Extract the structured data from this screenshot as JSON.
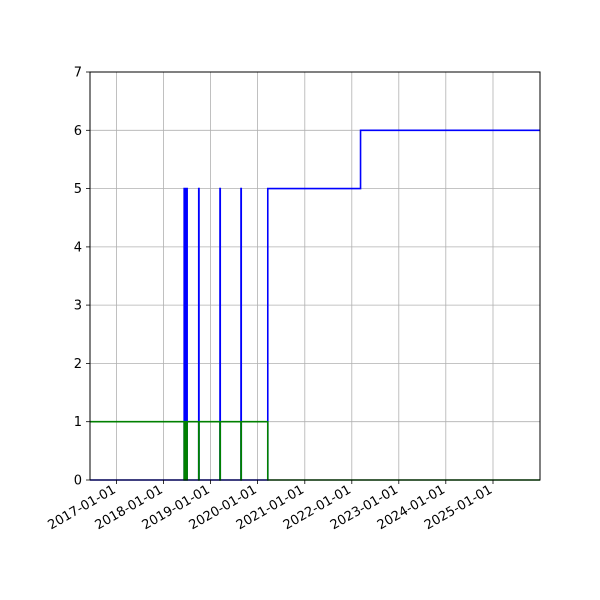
{
  "chart_data": {
    "type": "line",
    "title": "",
    "xlabel": "",
    "ylabel": "",
    "x_type": "date",
    "xlim": [
      "2016-06-09",
      "2026-01-01"
    ],
    "ylim": [
      0,
      7
    ],
    "grid": true,
    "x_ticks": [
      "2017-01-01",
      "2018-01-01",
      "2019-01-01",
      "2020-01-01",
      "2021-01-01",
      "2022-01-01",
      "2023-01-01",
      "2024-01-01",
      "2025-01-01"
    ],
    "y_ticks": [
      0,
      1,
      2,
      3,
      4,
      5,
      6,
      7
    ],
    "series": [
      {
        "color": "#0000ff",
        "drawstyle": "steps-post",
        "points": [
          [
            "2016-06-09",
            0
          ],
          [
            "2018-06-10",
            5
          ],
          [
            "2018-06-16",
            0
          ],
          [
            "2018-06-19",
            5
          ],
          [
            "2018-06-24",
            0
          ],
          [
            "2018-06-27",
            5
          ],
          [
            "2018-07-03",
            0
          ],
          [
            "2018-10-01",
            5
          ],
          [
            "2018-10-03",
            0
          ],
          [
            "2019-03-15",
            5
          ],
          [
            "2019-03-17",
            0
          ],
          [
            "2019-08-25",
            5
          ],
          [
            "2019-08-27",
            0
          ],
          [
            "2020-03-20",
            5
          ],
          [
            "2022-03-10",
            6
          ],
          [
            "2026-01-01",
            6
          ]
        ]
      },
      {
        "color": "#008000",
        "drawstyle": "steps-post",
        "points": [
          [
            "2016-06-09",
            1
          ],
          [
            "2018-06-10",
            0
          ],
          [
            "2018-06-16",
            1
          ],
          [
            "2018-06-19",
            0
          ],
          [
            "2018-06-24",
            1
          ],
          [
            "2018-06-27",
            0
          ],
          [
            "2018-07-03",
            1
          ],
          [
            "2018-10-01",
            0
          ],
          [
            "2018-10-03",
            1
          ],
          [
            "2019-03-15",
            0
          ],
          [
            "2019-03-17",
            1
          ],
          [
            "2019-08-25",
            0
          ],
          [
            "2019-08-27",
            1
          ],
          [
            "2020-03-20",
            0
          ],
          [
            "2026-01-01",
            0
          ]
        ]
      }
    ]
  }
}
